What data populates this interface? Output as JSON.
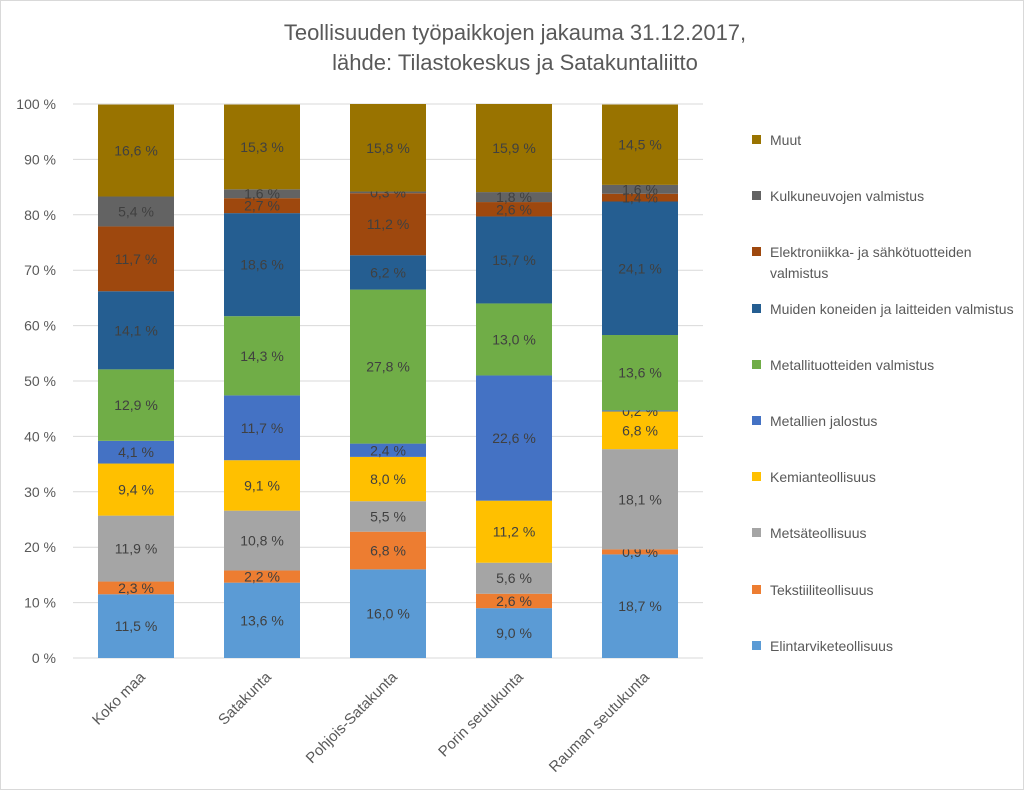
{
  "chart_data": {
    "type": "bar",
    "stacked": "percent",
    "title": "Teollisuuden työpaikkojen jakauma 31.12.2017,",
    "subtitle": "lähde: Tilastokeskus ja Satakuntaliitto",
    "ylim": [
      0,
      100
    ],
    "yticks": [
      "0 %",
      "10 %",
      "20 %",
      "30 %",
      "40 %",
      "50 %",
      "60 %",
      "70 %",
      "80 %",
      "90 %",
      "100 %"
    ],
    "grid": true,
    "legend_position": "right",
    "categories": [
      "Koko maa",
      "Satakunta",
      "Pohjois-Satakunta",
      "Porin seutukunta",
      "Rauman seutukunta"
    ],
    "series": [
      {
        "name": "Elintarviketeollisuus",
        "color": "#5b9bd5",
        "values": [
          11.5,
          13.6,
          16.0,
          9.0,
          18.7
        ],
        "labels": [
          "11,5 %",
          "13,6 %",
          "16,0 %",
          "9,0 %",
          "18,7 %"
        ]
      },
      {
        "name": "Tekstiiliteollisuus",
        "color": "#ed7d31",
        "values": [
          2.3,
          2.2,
          6.8,
          2.6,
          0.9
        ],
        "labels": [
          "2,3 %",
          "2,2 %",
          "6,8 %",
          "2,6 %",
          "0,9 %"
        ]
      },
      {
        "name": "Metsäteollisuus",
        "color": "#a5a5a5",
        "values": [
          11.9,
          10.8,
          5.5,
          5.6,
          18.1
        ],
        "labels": [
          "11,9 %",
          "10,8 %",
          "5,5 %",
          "5,6 %",
          "18,1 %"
        ]
      },
      {
        "name": "Kemianteollisuus",
        "color": "#ffc000",
        "values": [
          9.4,
          9.1,
          8.0,
          11.2,
          6.8
        ],
        "labels": [
          "9,4 %",
          "9,1 %",
          "8,0 %",
          "11,2 %",
          "6,8 %"
        ]
      },
      {
        "name": "Metallien jalostus",
        "color": "#4472c4",
        "values": [
          4.1,
          11.7,
          2.4,
          22.6,
          0.2
        ],
        "labels": [
          "4,1 %",
          "11,7 %",
          "2,4 %",
          "22,6 %",
          "0,2 %"
        ]
      },
      {
        "name": "Metallituotteiden valmistus",
        "color": "#70ad47",
        "values": [
          12.9,
          14.3,
          27.8,
          13.0,
          13.6
        ],
        "labels": [
          "12,9 %",
          "14,3 %",
          "27,8 %",
          "13,0 %",
          "13,6 %"
        ]
      },
      {
        "name": "Muiden koneiden ja laitteiden valmistus",
        "color": "#255e91",
        "values": [
          14.1,
          18.6,
          6.2,
          15.7,
          24.1
        ],
        "labels": [
          "14,1 %",
          "18,6 %",
          "6,2 %",
          "15,7 %",
          "24,1 %"
        ]
      },
      {
        "name": "Elektroniikka- ja sähkötuotteiden valmistus",
        "color": "#9e480e",
        "values": [
          11.7,
          2.7,
          11.2,
          2.6,
          1.4
        ],
        "labels": [
          "11,7 %",
          "2,7 %",
          "11,2 %",
          "2,6 %",
          "1,4 %"
        ]
      },
      {
        "name": "Kulkuneuvojen valmistus",
        "color": "#636363",
        "values": [
          5.4,
          1.6,
          0.3,
          1.8,
          1.6
        ],
        "labels": [
          "5,4 %",
          "1,6 %",
          "0,3 %",
          "1,8 %",
          "1,6 %"
        ]
      },
      {
        "name": "Muut",
        "color": "#997300",
        "values": [
          16.6,
          15.3,
          15.8,
          15.9,
          14.5
        ],
        "labels": [
          "16,6 %",
          "15,3 %",
          "15,8 %",
          "15,9 %",
          "14,5 %"
        ]
      }
    ]
  }
}
